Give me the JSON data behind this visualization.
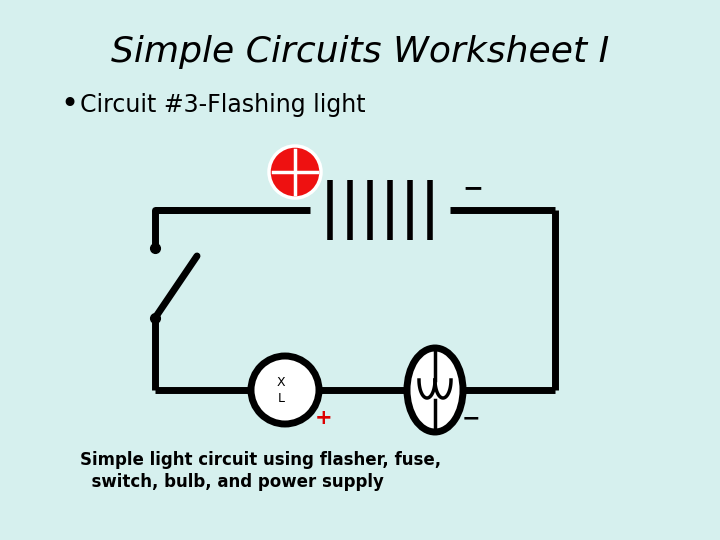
{
  "bg_color": "#d6f0ee",
  "title": "Simple Circuits Worksheet I",
  "title_fontsize": 26,
  "title_style": "italic",
  "bullet_text": "Circuit #3-Flashing light",
  "bullet_fontsize": 17,
  "caption_line1": "Simple light circuit using flasher, fuse,",
  "caption_line2": "  switch, bulb, and power supply",
  "caption_fontsize": 12,
  "circuit_color": "black",
  "line_width": 5,
  "flasher_color": "#ee1111",
  "plus_color": "#dd0000",
  "bg_hex": "#d6f0ee"
}
